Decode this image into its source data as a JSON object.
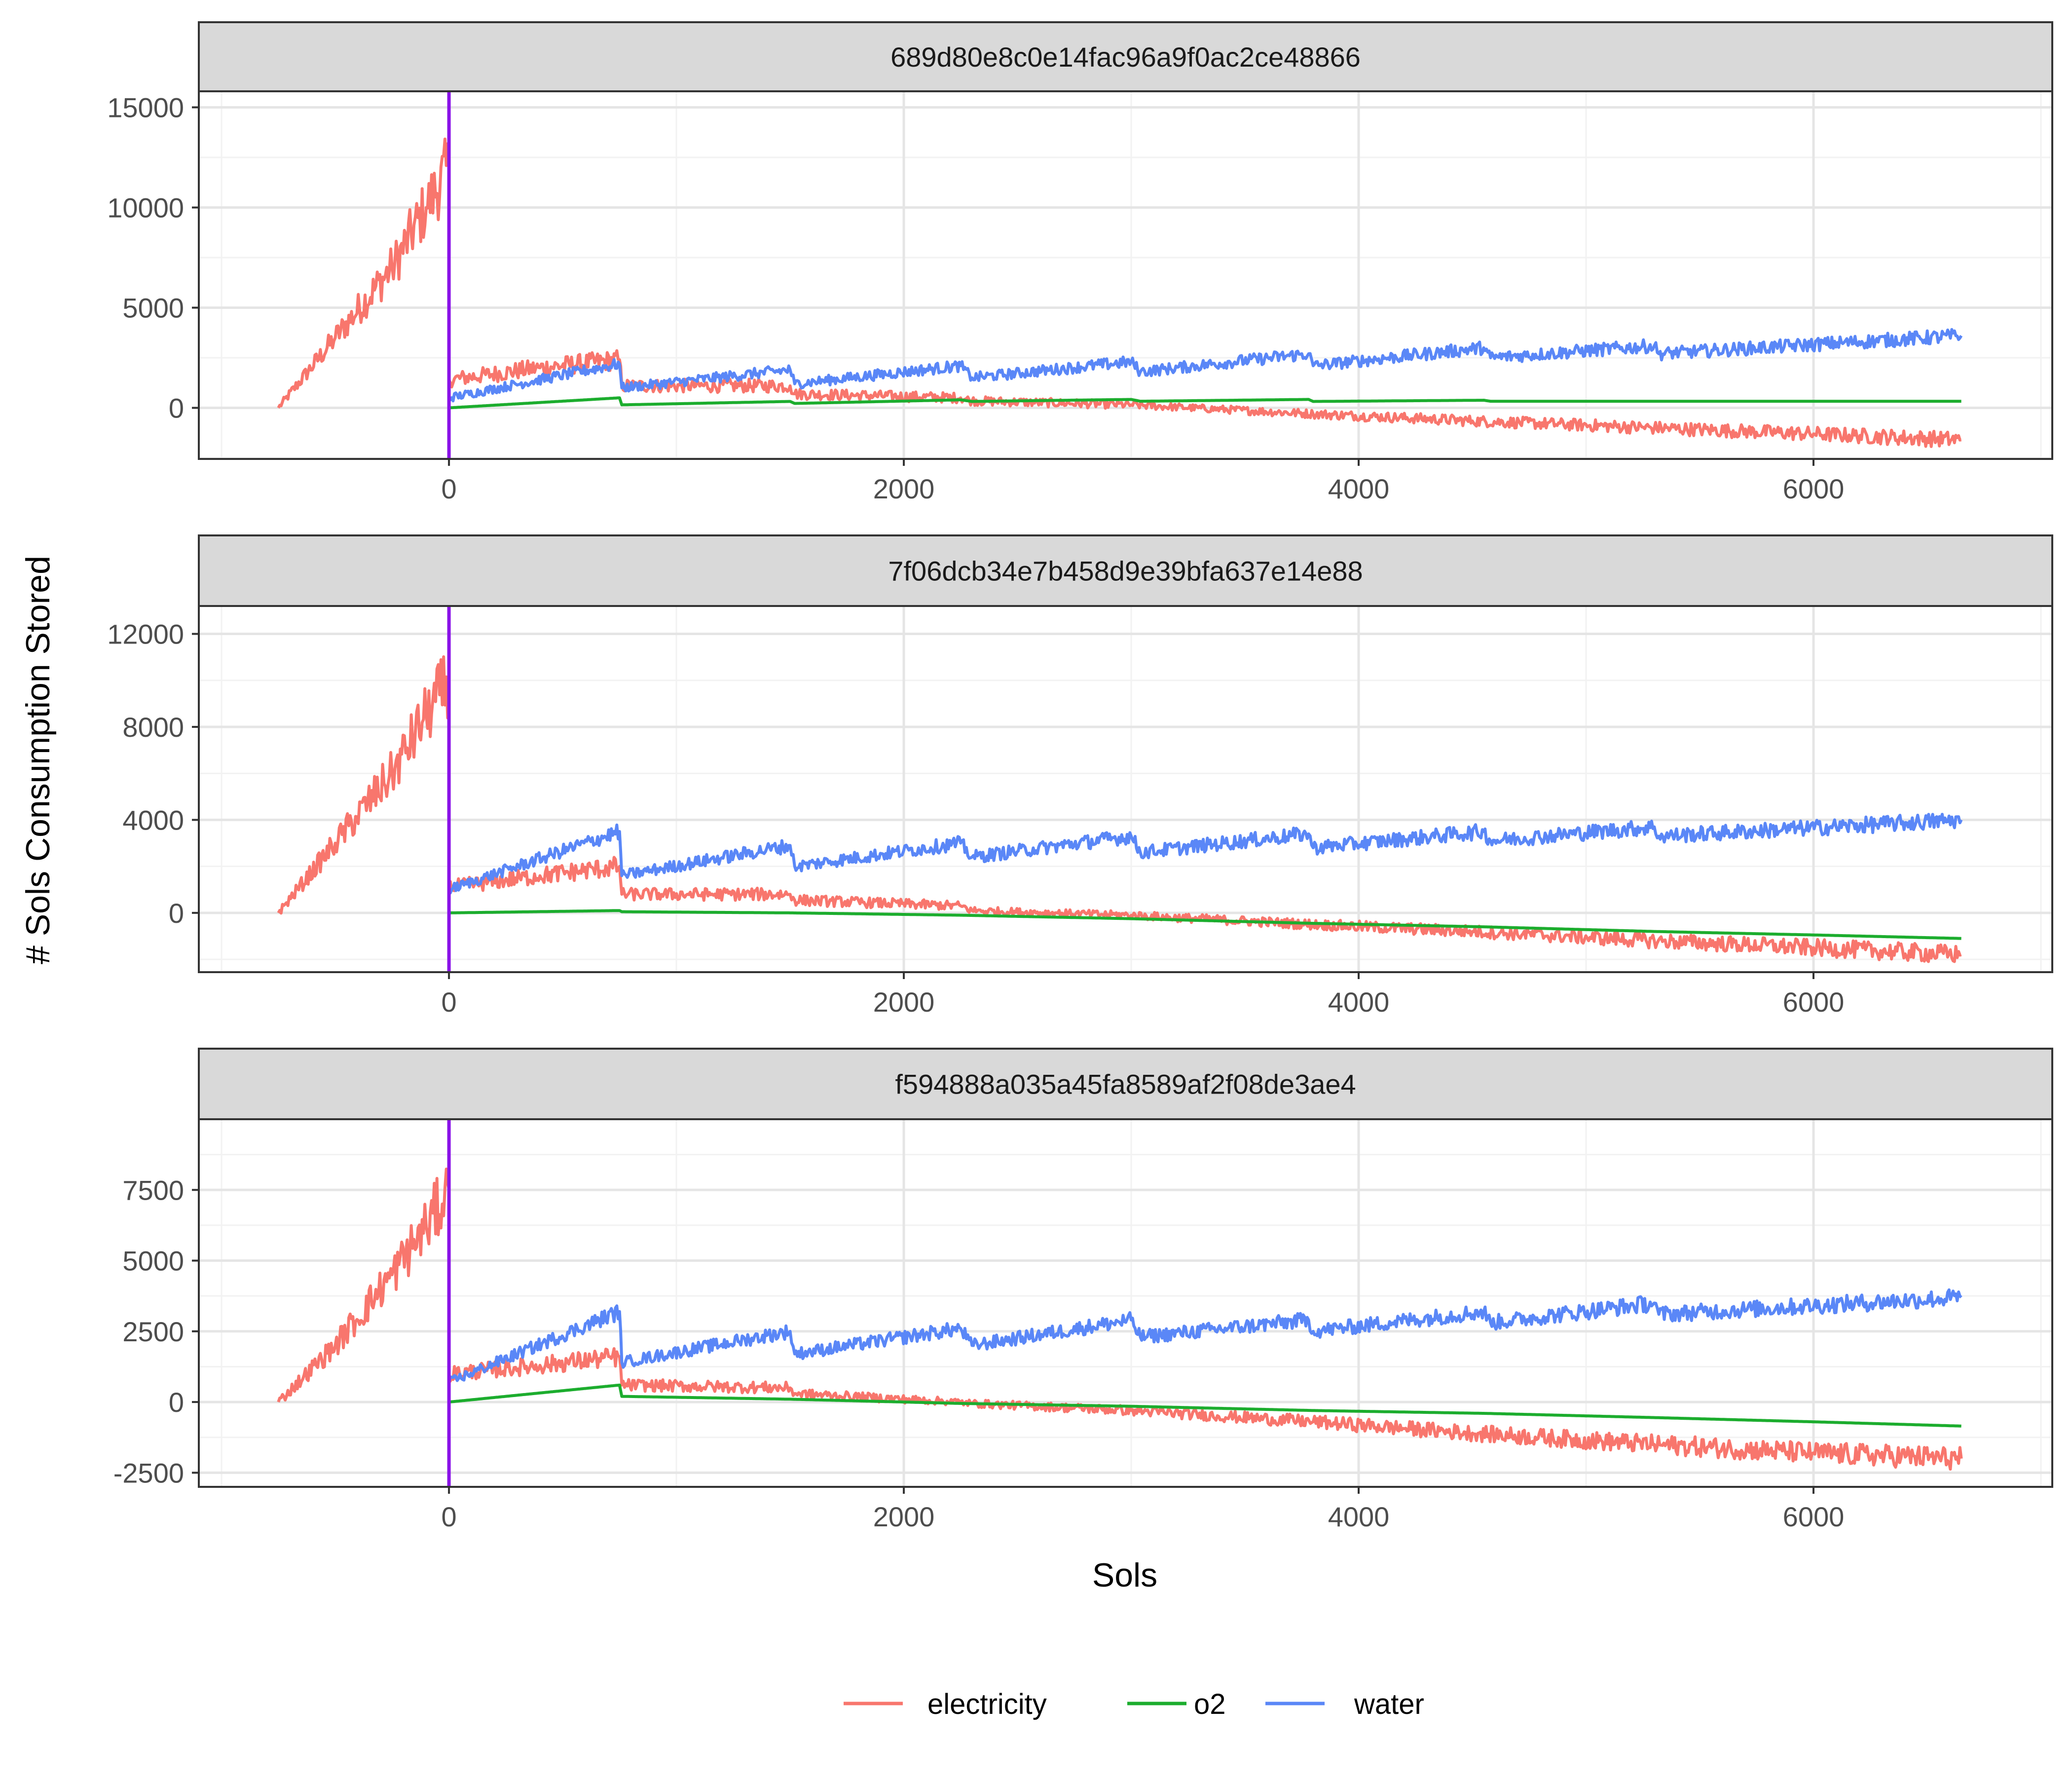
{
  "chart_data": {
    "type": "line",
    "xlabel": "Sols",
    "ylabel": "# Sols Consumption Stored",
    "legend_position": "bottom",
    "grid": true,
    "colors": {
      "electricity": "#F8766D",
      "o2": "#1CAD2E",
      "water": "#5A87F7",
      "marker": "#8A12E8"
    },
    "vline_x": 0,
    "x_ticks": [
      "0",
      "2000",
      "4000",
      "6000"
    ],
    "x_tick_values": [
      0,
      2000,
      4000,
      6000
    ],
    "xlim": [
      -1100,
      7050
    ],
    "legend": [
      {
        "key": "electricity",
        "label": "electricity"
      },
      {
        "key": "o2",
        "label": "o2"
      },
      {
        "key": "water",
        "label": "water"
      }
    ],
    "panels": [
      {
        "strip": "689d80e8c0e14fac96a9f0ac2ce48866",
        "ylim": [
          -2550,
          15800
        ],
        "y_ticks": [
          "0",
          "5000",
          "10000",
          "15000"
        ],
        "y_tick_values": [
          0,
          5000,
          10000,
          15000
        ],
        "series": [
          {
            "name": "electricity",
            "x": [
              -750,
              -500,
              -250,
              -100,
              0,
              0,
              400,
              750,
              760,
              1500,
              1520,
              2250,
              2300,
              3000,
              3800,
              4500,
              5300,
              6000,
              6650
            ],
            "y": [
              0,
              3500,
              7000,
              10000,
              12000,
              1400,
              2000,
              2400,
              1100,
              1100,
              700,
              500,
              350,
              150,
              -300,
              -650,
              -1000,
              -1300,
              -1600
            ],
            "noise": 0.14
          },
          {
            "name": "o2",
            "x": [
              0,
              750,
              760,
              1500,
              1520,
              2250,
              2300,
              3000,
              3040,
              3780,
              3800,
              4550,
              4580,
              6650
            ],
            "y": [
              0,
              500,
              150,
              320,
              220,
              400,
              320,
              420,
              330,
              420,
              320,
              380,
              330,
              330
            ],
            "noise": 0
          },
          {
            "name": "water",
            "x": [
              0,
              750,
              760,
              1500,
              1520,
              2250,
              2300,
              3000,
              3040,
              3780,
              3800,
              4550,
              4580,
              5300,
              5320,
              6650
            ],
            "y": [
              500,
              2200,
              1000,
              1900,
              1200,
              2100,
              1500,
              2300,
              1800,
              2700,
              2100,
              3000,
              2500,
              3100,
              2700,
              3600
            ],
            "noise": 0.05
          }
        ]
      },
      {
        "strip": "7f06dcb34e7b458d9e39bfa637e14e88",
        "ylim": [
          -2550,
          13200
        ],
        "y_ticks": [
          "0",
          "4000",
          "8000",
          "12000"
        ],
        "y_tick_values": [
          0,
          4000,
          8000,
          12000
        ],
        "series": [
          {
            "name": "electricity",
            "x": [
              -750,
              -500,
              -250,
              -100,
              0,
              0,
              400,
              750,
              760,
              1500,
              1520,
              2250,
              2300,
              3000,
              3800,
              4500,
              5300,
              6000,
              6650
            ],
            "y": [
              0,
              3000,
              6000,
              8500,
              10000,
              1100,
              1600,
              2000,
              800,
              800,
              550,
              300,
              100,
              -100,
              -500,
              -800,
              -1200,
              -1500,
              -1800
            ],
            "noise": 0.14
          },
          {
            "name": "o2",
            "x": [
              0,
              750,
              760,
              1500,
              2250,
              3000,
              3800,
              4550,
              5300,
              6000,
              6650
            ],
            "y": [
              0,
              100,
              50,
              0,
              -100,
              -250,
              -450,
              -600,
              -800,
              -950,
              -1100
            ],
            "noise": 0
          },
          {
            "name": "water",
            "x": [
              0,
              750,
              760,
              1500,
              1520,
              2250,
              2300,
              3000,
              3040,
              3780,
              3800,
              4550,
              4580,
              5300,
              5320,
              6650
            ],
            "y": [
              1000,
              3500,
              1600,
              2900,
              2000,
              3000,
              2400,
              3300,
              2600,
              3400,
              2800,
              3500,
              3100,
              3700,
              3300,
              4000
            ],
            "noise": 0.05
          }
        ]
      },
      {
        "strip": "f594888a035a45fa8589af2f08de3ae4",
        "ylim": [
          -3000,
          10000
        ],
        "y_ticks": [
          "-2500",
          "0",
          "2500",
          "5000",
          "7500"
        ],
        "y_tick_values": [
          -2500,
          0,
          2500,
          5000,
          7500
        ],
        "series": [
          {
            "name": "electricity",
            "x": [
              -750,
              -500,
              -250,
              -100,
              0,
              0,
              400,
              750,
              760,
              1500,
              1520,
              2250,
              2300,
              3000,
              3800,
              4500,
              5300,
              6000,
              6650
            ],
            "y": [
              0,
              2000,
              4500,
              6200,
              7500,
              1000,
              1300,
              1600,
              600,
              500,
              300,
              0,
              -50,
              -300,
              -700,
              -1100,
              -1500,
              -1800,
              -2000
            ],
            "noise": 0.14
          },
          {
            "name": "o2",
            "x": [
              0,
              750,
              760,
              1500,
              2250,
              3000,
              3800,
              4550,
              5300,
              6000,
              6650
            ],
            "y": [
              0,
              600,
              200,
              100,
              -50,
              -150,
              -300,
              -400,
              -550,
              -700,
              -850
            ],
            "noise": 0
          },
          {
            "name": "water",
            "x": [
              0,
              750,
              760,
              1500,
              1520,
              2250,
              2300,
              3000,
              3040,
              3780,
              3800,
              4550,
              4580,
              5300,
              5320,
              6650
            ],
            "y": [
              700,
              3200,
              1400,
              2500,
              1700,
              2600,
              2000,
              2900,
              2300,
              2900,
              2500,
              3200,
              2800,
              3500,
              3100,
              3700
            ],
            "noise": 0.05
          }
        ]
      }
    ]
  }
}
